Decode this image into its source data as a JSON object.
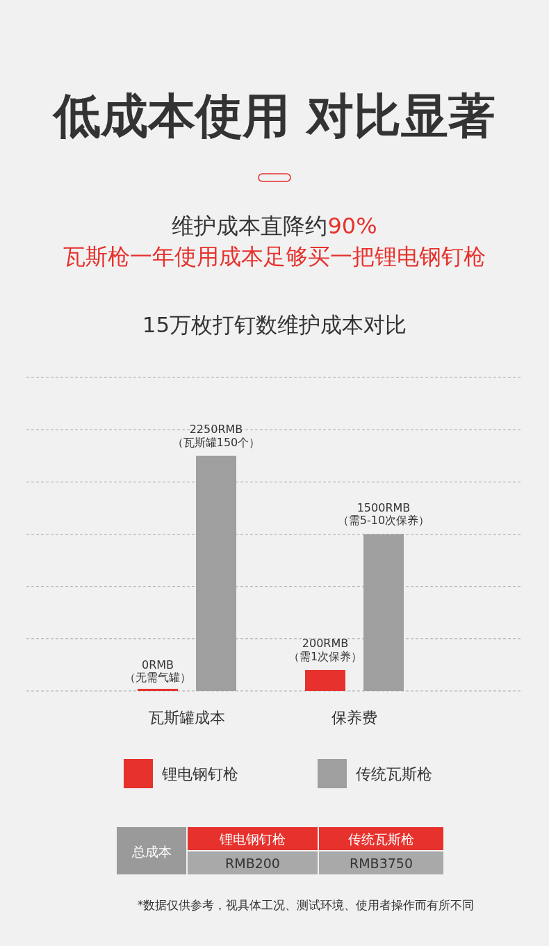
{
  "chart_data": {
    "type": "bar",
    "title": "低成本使用 对比显著",
    "subtitle": "维护成本直降约90%",
    "annotations": [
      "瓦斯枪一年使用成本足够买一把锂电钢钉枪",
      "15万枚打钉数维护成本对比",
      "总成本",
      "RMB200",
      "RMB3750",
      "*数据仅供参考，视具体工况、测试环境、使用者操作而有所不同"
    ],
    "categories": [
      "瓦斯罐成本",
      "保养费"
    ],
    "series": [
      {
        "name": "锂电钢钉枪",
        "color": "#e6312c",
        "values": [
          0,
          200
        ],
        "value_labels": [
          "0RMB\n（无需气罐）",
          "200RMB\n（需1次保养）"
        ]
      },
      {
        "name": "传统瓦斯枪",
        "color": "#9f9f9f",
        "values": [
          2250,
          1500
        ],
        "value_labels": [
          "2250RMB\n（瓦斯罐150个）",
          "1500RMB\n（需5-10次保养）"
        ]
      }
    ],
    "ylim": [
      0,
      3000
    ],
    "yticks": [
      {
        "value": 0,
        "label": null
      },
      {
        "value": 500,
        "label": null
      },
      {
        "value": 1000,
        "label": null
      },
      {
        "value": 1500,
        "label": null
      },
      {
        "value": 2000,
        "label": null
      },
      {
        "value": 2500,
        "label": null
      },
      {
        "value": 3000,
        "label": null
      }
    ],
    "grid": "y",
    "legend": "bottom",
    "tick_labels": "x"
  }
}
